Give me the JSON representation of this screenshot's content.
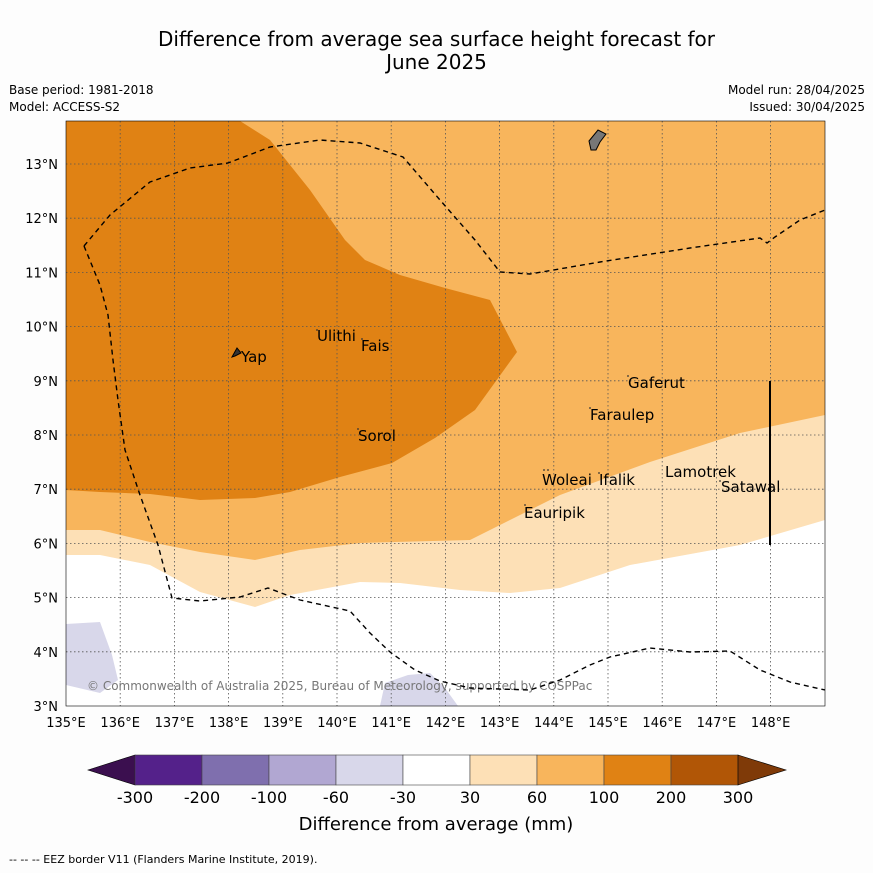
{
  "title_line1": "Difference from average sea surface height forecast for",
  "title_line2": "June 2025",
  "meta_left": {
    "base_period": "Base period: 1981-2018",
    "model": "Model: ACCESS-S2"
  },
  "meta_right": {
    "model_run": "Model run: 28/04/2025",
    "issued": "Issued: 30/04/2025"
  },
  "map": {
    "lon_ticks": [
      "135°E",
      "136°E",
      "137°E",
      "138°E",
      "139°E",
      "140°E",
      "141°E",
      "142°E",
      "143°E",
      "144°E",
      "145°E",
      "146°E",
      "147°E",
      "148°E"
    ],
    "lat_ticks": [
      "3°N",
      "4°N",
      "5°N",
      "6°N",
      "7°N",
      "8°N",
      "9°N",
      "10°N",
      "11°N",
      "12°N",
      "13°N"
    ],
    "places": [
      "Yap",
      "Ulithi",
      "Fais",
      "Sorol",
      "Gaferut",
      "Faraulep",
      "Woleai",
      "Ifalik",
      "Lamotrek",
      "Satawal",
      "Eauripik"
    ],
    "copyright": "© Commonwealth of Australia 2025, Bureau of Meteorology, supported by COSPPac"
  },
  "legend": {
    "title": "Difference from average (mm)",
    "labels": [
      "-300",
      "-200",
      "-100",
      "-60",
      "-30",
      "30",
      "60",
      "100",
      "200",
      "300"
    ],
    "colors": [
      "#3b0f4f",
      "#54218a",
      "#7f6fae",
      "#b1a7d2",
      "#d8d7ea",
      "#ffffff",
      "#fde0b6",
      "#f8b55c",
      "#e08214",
      "#b15606",
      "#7f3a08"
    ]
  },
  "footer": "--  --  -- EEZ border V11 (Flanders Marine Institute, 2019)."
}
